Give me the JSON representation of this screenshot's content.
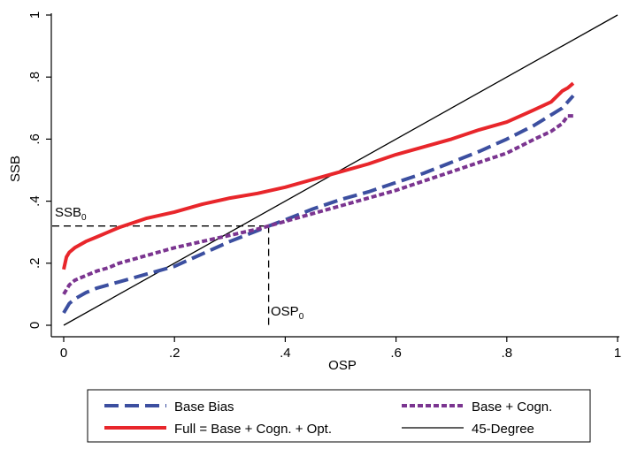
{
  "chart_data": {
    "type": "line",
    "title": "",
    "xlabel": "OSP",
    "ylabel": "SSB",
    "xlim": [
      0,
      1
    ],
    "ylim": [
      0,
      1
    ],
    "x_ticks": [
      {
        "value": 0,
        "label": "0"
      },
      {
        "value": 0.2,
        "label": ".2"
      },
      {
        "value": 0.4,
        "label": ".4"
      },
      {
        "value": 0.6,
        "label": ".6"
      },
      {
        "value": 0.8,
        "label": ".8"
      },
      {
        "value": 1,
        "label": "1"
      }
    ],
    "y_ticks": [
      {
        "value": 0,
        "label": "0"
      },
      {
        "value": 0.2,
        "label": ".2"
      },
      {
        "value": 0.4,
        "label": ".4"
      },
      {
        "value": 0.6,
        "label": ".6"
      },
      {
        "value": 0.8,
        "label": ".8"
      },
      {
        "value": 1,
        "label": "1"
      }
    ],
    "grid": false,
    "legend_position": "bottom",
    "series": [
      {
        "name": "Base Bias",
        "color": "#3c4fa0",
        "dash": "long-dash",
        "x": [
          0,
          0.01,
          0.02,
          0.04,
          0.06,
          0.08,
          0.1,
          0.15,
          0.2,
          0.25,
          0.3,
          0.35,
          0.37,
          0.4,
          0.45,
          0.5,
          0.55,
          0.6,
          0.65,
          0.7,
          0.75,
          0.8,
          0.85,
          0.9,
          0.92
        ],
        "y": [
          0.04,
          0.07,
          0.085,
          0.105,
          0.12,
          0.13,
          0.14,
          0.165,
          0.19,
          0.23,
          0.27,
          0.305,
          0.32,
          0.34,
          0.375,
          0.405,
          0.43,
          0.46,
          0.49,
          0.525,
          0.56,
          0.6,
          0.645,
          0.7,
          0.74
        ]
      },
      {
        "name": "Base + Cogn.",
        "color": "#7b3590",
        "dash": "short-dash",
        "x": [
          0,
          0.01,
          0.02,
          0.04,
          0.06,
          0.08,
          0.1,
          0.15,
          0.2,
          0.25,
          0.3,
          0.35,
          0.37,
          0.4,
          0.45,
          0.5,
          0.55,
          0.6,
          0.65,
          0.7,
          0.75,
          0.8,
          0.85,
          0.88,
          0.9,
          0.91,
          0.92
        ],
        "y": [
          0.1,
          0.13,
          0.145,
          0.16,
          0.175,
          0.185,
          0.2,
          0.225,
          0.25,
          0.27,
          0.29,
          0.31,
          0.32,
          0.335,
          0.36,
          0.385,
          0.41,
          0.435,
          0.465,
          0.495,
          0.525,
          0.555,
          0.6,
          0.625,
          0.65,
          0.675,
          0.675
        ]
      },
      {
        "name": "Full = Base + Cogn. + Opt.",
        "color": "#e8262b",
        "dash": "solid",
        "x": [
          0,
          0.005,
          0.01,
          0.02,
          0.04,
          0.06,
          0.08,
          0.1,
          0.15,
          0.2,
          0.25,
          0.3,
          0.35,
          0.4,
          0.45,
          0.5,
          0.55,
          0.6,
          0.65,
          0.7,
          0.75,
          0.8,
          0.85,
          0.88,
          0.9,
          0.91,
          0.92
        ],
        "y": [
          0.18,
          0.22,
          0.235,
          0.25,
          0.27,
          0.285,
          0.3,
          0.315,
          0.345,
          0.365,
          0.39,
          0.41,
          0.425,
          0.445,
          0.47,
          0.495,
          0.52,
          0.55,
          0.575,
          0.6,
          0.63,
          0.655,
          0.695,
          0.72,
          0.755,
          0.765,
          0.78
        ]
      },
      {
        "name": "45-Degree",
        "color": "#000000",
        "dash": "thin-solid",
        "x": [
          0,
          1
        ],
        "y": [
          0,
          1
        ]
      }
    ],
    "annotations": {
      "ssb0_label": "SSB",
      "ssb0_subscript": "0",
      "ssb0_value": 0.32,
      "osp0_label": "OSP",
      "osp0_subscript": "0",
      "osp0_value": 0.37
    }
  }
}
